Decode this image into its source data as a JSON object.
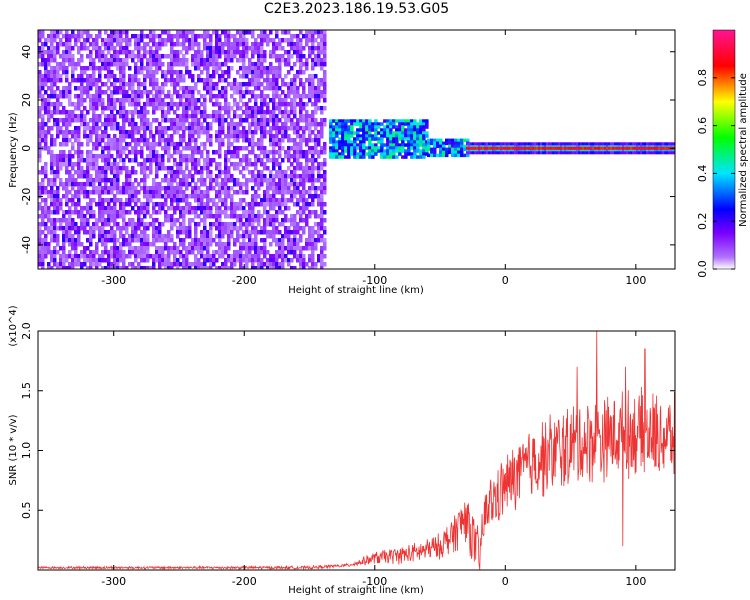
{
  "title": "C2E3.2023.186.19.53.G05",
  "chart_data": [
    {
      "type": "heatmap",
      "xlabel": "Height of straight line (km)",
      "ylabel": "Frequency (Hz)",
      "xlim": [
        -358,
        130
      ],
      "ylim": [
        -50,
        49
      ],
      "x_ticks": [
        -300,
        -200,
        -100,
        0,
        100
      ],
      "x_tick_labels": [
        "-300",
        "-200",
        "-100",
        "0",
        "100"
      ],
      "y_ticks": [
        -40,
        -20,
        0,
        20,
        40
      ],
      "y_tick_labels": [
        "-40",
        "-20",
        "0",
        "20",
        "40"
      ],
      "colorbar": {
        "label": "Normalized spectral amplitude",
        "range": [
          0,
          1
        ],
        "ticks": [
          0.0,
          0.2,
          0.4,
          0.6,
          0.8
        ],
        "tick_labels": [
          "0.0",
          "0.2",
          "0.4",
          "0.6",
          "0.8"
        ],
        "colors": [
          "#ffffff",
          "#9b30ff",
          "#0000ff",
          "#00e5ff",
          "#00ff00",
          "#ffff00",
          "#ff0000",
          "#ff1493"
        ]
      },
      "regions": [
        {
          "x_range": [
            -358,
            -138
          ],
          "y_range": [
            -50,
            49
          ],
          "amplitude": 0.15,
          "pattern": "noise"
        },
        {
          "x_range": [
            -135,
            -60
          ],
          "y_range": [
            -3,
            12
          ],
          "amplitude": 0.45,
          "pattern": "blob"
        },
        {
          "x_range": [
            -60,
            -30
          ],
          "y_range": [
            -3,
            4
          ],
          "amplitude": 0.45,
          "pattern": "blob"
        },
        {
          "x_range": [
            -30,
            130
          ],
          "y_range": [
            -1,
            1
          ],
          "amplitude": 1.0,
          "pattern": "line"
        }
      ]
    },
    {
      "type": "line",
      "xlabel": "Height of straight line (km)",
      "ylabel": "SNR (10 * v/v)",
      "y_multiplier_label": "(x10^4)",
      "xlim": [
        -358,
        130
      ],
      "ylim": [
        0,
        20000
      ],
      "x_ticks": [
        -300,
        -200,
        -100,
        0,
        100
      ],
      "x_tick_labels": [
        "-300",
        "-200",
        "-100",
        "0",
        "100"
      ],
      "y_ticks": [
        5000,
        10000,
        15000,
        20000
      ],
      "y_tick_labels": [
        "0.5",
        "1.0",
        "1.5",
        "2.0"
      ],
      "color": "#ee3333",
      "trend": {
        "x": [
          -358,
          -150,
          -120,
          -100,
          -70,
          -50,
          -40,
          -30,
          -20,
          -15,
          0,
          20,
          40,
          70,
          100,
          130
        ],
        "y": [
          200,
          200,
          400,
          1000,
          1400,
          2000,
          3000,
          4500,
          1000,
          5000,
          7000,
          9000,
          10000,
          11000,
          11500,
          11000
        ]
      },
      "noise_amplitude": {
        "x": [
          -358,
          -120,
          -100,
          -50,
          -30,
          -15,
          0,
          40,
          130
        ],
        "y": [
          100,
          150,
          600,
          1200,
          2500,
          2500,
          3000,
          4000,
          4000
        ]
      },
      "peaks": [
        {
          "x": 70,
          "y": 20000
        },
        {
          "x": 55,
          "y": 17000
        },
        {
          "x": 92,
          "y": 17000
        },
        {
          "x": 107,
          "y": 18500
        },
        {
          "x": 90,
          "y": 2000
        }
      ]
    }
  ]
}
